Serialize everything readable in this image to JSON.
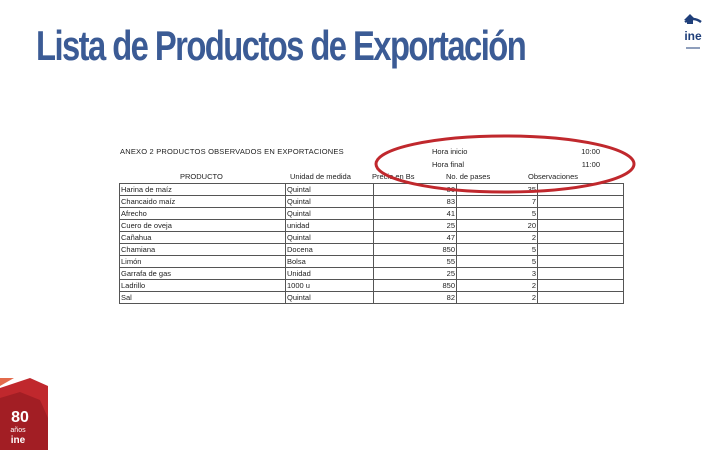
{
  "title": "Lista de Productos de Exportación",
  "annex": "ANEXO 2 PRODUCTOS OBSERVADOS EN EXPORTACIONES",
  "times": {
    "start_label": "Hora inicio",
    "start_value": "10:00",
    "end_label": "Hora final",
    "end_value": "11:00"
  },
  "headers": {
    "product": "PRODUCTO",
    "unit": "Unidad de medida",
    "price": "Precio en Bs",
    "passes": "No. de pases",
    "observations": "Observaciones"
  },
  "rows": [
    {
      "product": "Harina de maíz",
      "unit": "Quintal",
      "price": "80",
      "passes": "35"
    },
    {
      "product": "Chancaido maíz",
      "unit": "Quintal",
      "price": "83",
      "passes": "7"
    },
    {
      "product": "Afrecho",
      "unit": "Quintal",
      "price": "41",
      "passes": "5"
    },
    {
      "product": "Cuero de oveja",
      "unit": "unidad",
      "price": "25",
      "passes": "20"
    },
    {
      "product": "Cañahua",
      "unit": "Quintal",
      "price": "47",
      "passes": "2"
    },
    {
      "product": "Chamiana",
      "unit": "Docena",
      "price": "850",
      "passes": "5"
    },
    {
      "product": "Limón",
      "unit": "Bolsa",
      "price": "55",
      "passes": "5"
    },
    {
      "product": "Garrafa de gas",
      "unit": "Unidad",
      "price": "25",
      "passes": "3"
    },
    {
      "product": "Ladrillo",
      "unit": "1000 u",
      "price": "850",
      "passes": "2"
    },
    {
      "product": "Sal",
      "unit": "Quintal",
      "price": "82",
      "passes": "2"
    }
  ],
  "colors": {
    "title": "#3b5b95",
    "accent_red": "#c0282d",
    "logo_blue": "#1f3f7a"
  },
  "logos": {
    "top": "ine",
    "bottom_years": "80",
    "bottom_word": "años",
    "bottom_brand": "ine"
  }
}
